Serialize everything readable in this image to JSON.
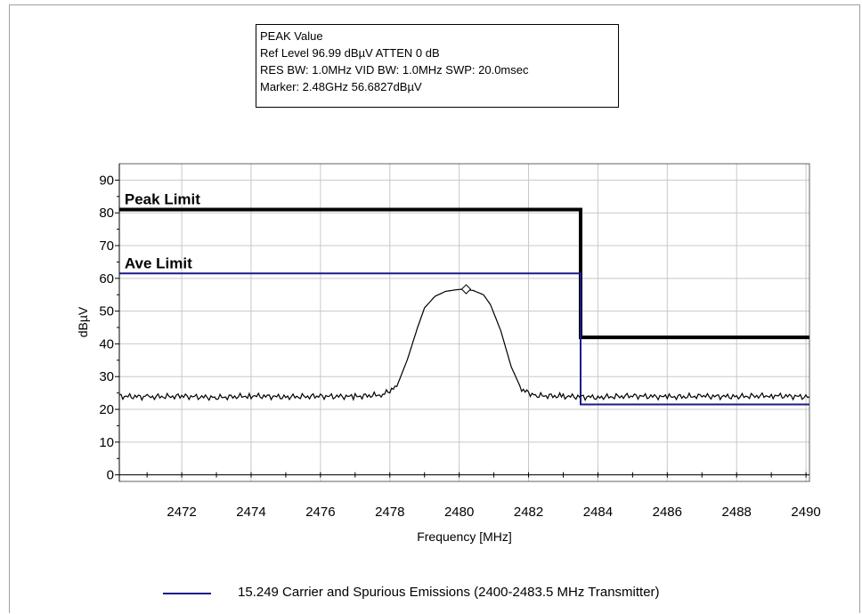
{
  "infobox": {
    "line1": "PEAK Value",
    "line2": "Ref Level 96.99 dBµV    ATTEN 0 dB",
    "line3": "RES BW: 1.0MHz  VID BW: 1.0MHz  SWP: 20.0msec",
    "line4": "Marker: 2.48GHz  56.6827dBµV"
  },
  "colors": {
    "peak_limit": "#000000",
    "ave_limit": "#1a1a8c",
    "trace": "#000000",
    "grid": "#c8c8c8"
  },
  "legend": {
    "label": "15.249 Carrier and Spurious Emissions (2400-2483.5 MHz Transmitter)"
  },
  "chart_data": {
    "type": "line",
    "xlabel": "Frequency [MHz]",
    "ylabel": "dBµV",
    "xlim": [
      2470.2,
      2490.1
    ],
    "ylim": [
      -2,
      95
    ],
    "xticks": [
      2472,
      2474,
      2476,
      2478,
      2480,
      2482,
      2484,
      2486,
      2488,
      2490
    ],
    "yticks": [
      0,
      10,
      20,
      30,
      40,
      50,
      60,
      70,
      80,
      90
    ],
    "grid": true,
    "annotations": [
      {
        "text": "Peak Limit",
        "x": 2470.3,
        "y": 81
      },
      {
        "text": "Ave Limit",
        "x": 2470.3,
        "y": 61.5
      }
    ],
    "series": [
      {
        "name": "Peak Limit",
        "x": [
          2470.2,
          2483.5,
          2483.5,
          2490.1
        ],
        "y": [
          81,
          81,
          42,
          42
        ]
      },
      {
        "name": "Ave Limit",
        "x": [
          2470.2,
          2483.5,
          2483.5,
          2490.1
        ],
        "y": [
          61.5,
          61.5,
          21.5,
          21.5
        ]
      },
      {
        "name": "trace",
        "x": [
          2470.2,
          2471,
          2472,
          2473,
          2474,
          2475,
          2476,
          2477,
          2477.8,
          2478.2,
          2478.5,
          2478.8,
          2479.0,
          2479.3,
          2479.6,
          2479.9,
          2480.1,
          2480.4,
          2480.7,
          2480.9,
          2481.2,
          2481.5,
          2481.8,
          2482.2,
          2483,
          2484,
          2485,
          2486,
          2487,
          2488,
          2489,
          2490.1
        ],
        "y": [
          24,
          23.8,
          24,
          23.6,
          24.1,
          23.8,
          24,
          23.9,
          24.5,
          27,
          35,
          45,
          51,
          54.5,
          56,
          56.5,
          56.7,
          56.3,
          55,
          52,
          44,
          33,
          26,
          24.2,
          24,
          23.7,
          24.1,
          23.8,
          24,
          23.9,
          24.2,
          23.8
        ]
      }
    ],
    "marker": {
      "x": 2480.2,
      "y": 56.68
    }
  }
}
